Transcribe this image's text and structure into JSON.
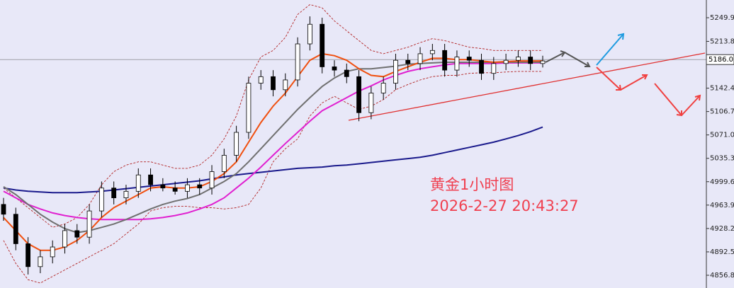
{
  "chart_data": {
    "type": "candlestick",
    "annotations": [
      "黄金1小时图",
      "2026-2-27 20:43:27"
    ],
    "price": 5186.05,
    "open": [
      4965,
      4950,
      4905,
      4870,
      4885,
      4900,
      4925,
      4915,
      4955,
      4990,
      4975,
      4985,
      5010,
      4995,
      4990,
      4985,
      4995,
      4990,
      5015,
      5040,
      5075,
      5150,
      5160,
      5140,
      5155,
      5210,
      5240,
      5175,
      5170,
      5160,
      5105,
      5135,
      5150,
      5185,
      5180,
      5195,
      5200,
      5170,
      5190,
      5185,
      5165,
      5180,
      5185,
      5190,
      5180
    ],
    "high": [
      4975,
      4960,
      4915,
      4895,
      4910,
      4935,
      4935,
      4965,
      5000,
      5000,
      4995,
      5020,
      5020,
      5005,
      5000,
      5005,
      5005,
      5025,
      5050,
      5085,
      5160,
      5170,
      5170,
      5165,
      5220,
      5252,
      5250,
      5185,
      5180,
      5170,
      5145,
      5160,
      5195,
      5195,
      5205,
      5210,
      5210,
      5200,
      5200,
      5195,
      5190,
      5195,
      5200,
      5200,
      5192
    ],
    "low": [
      4940,
      4895,
      4858,
      4860,
      4875,
      4890,
      4905,
      4905,
      4945,
      4965,
      4965,
      4975,
      4985,
      4985,
      4980,
      4975,
      4980,
      4980,
      5005,
      5030,
      5065,
      5140,
      5130,
      5130,
      5145,
      5200,
      5165,
      5160,
      5150,
      5092,
      5095,
      5125,
      5140,
      5170,
      5170,
      5185,
      5160,
      5160,
      5175,
      5155,
      5155,
      5170,
      5175,
      5170,
      5174
    ],
    "close": [
      4950,
      4905,
      4870,
      4885,
      4900,
      4925,
      4915,
      4955,
      4990,
      4975,
      4985,
      5010,
      4995,
      4990,
      4985,
      4995,
      4990,
      5015,
      5040,
      5075,
      5150,
      5160,
      5140,
      5155,
      5210,
      5240,
      5175,
      5170,
      5160,
      5105,
      5135,
      5150,
      5185,
      5180,
      5195,
      5200,
      5170,
      5190,
      5185,
      5165,
      5180,
      5185,
      5190,
      5180,
      5184
    ],
    "series": [
      {
        "color": "#b22222",
        "dash": true,
        "values": [
          4990,
          4975,
          4960,
          4945,
          4930,
          4935,
          4945,
          4965,
          4995,
          5015,
          5025,
          5030,
          5030,
          5025,
          5020,
          5020,
          5025,
          5040,
          5065,
          5100,
          5155,
          5190,
          5200,
          5220,
          5255,
          5270,
          5265,
          5245,
          5230,
          5215,
          5200,
          5195,
          5200,
          5205,
          5212,
          5218,
          5215,
          5210,
          5205,
          5203,
          5200,
          5200,
          5200,
          5200,
          5200
        ]
      },
      {
        "color": "#b22222",
        "dash": true,
        "values": [
          4910,
          4875,
          4850,
          4845,
          4855,
          4865,
          4875,
          4885,
          4895,
          4905,
          4920,
          4935,
          4955,
          4960,
          4962,
          4962,
          4960,
          4960,
          4958,
          4960,
          4965,
          4990,
          5030,
          5050,
          5065,
          5100,
          5120,
          5130,
          5120,
          5110,
          5115,
          5125,
          5140,
          5148,
          5155,
          5160,
          5162,
          5162,
          5165,
          5166,
          5166,
          5167,
          5168,
          5168,
          5168
        ]
      },
      {
        "color": "#1a1a8c",
        "dash": false,
        "values": [
          4990,
          4987,
          4985,
          4984,
          4983,
          4983,
          4983,
          4984,
          4985,
          4987,
          4989,
          4991,
          4993,
          4995,
          4997,
          4999,
          5001,
          5004,
          5007,
          5010,
          5012,
          5014,
          5016,
          5018,
          5020,
          5021,
          5022,
          5024,
          5025,
          5027,
          5029,
          5031,
          5033,
          5035,
          5037,
          5040,
          5044,
          5048,
          5052,
          5056,
          5060,
          5065,
          5070,
          5076,
          5083
        ]
      },
      {
        "color": "#e020d0",
        "dash": false,
        "values": [
          4985,
          4975,
          4965,
          4958,
          4952,
          4948,
          4945,
          4943,
          4942,
          4942,
          4942,
          4942,
          4943,
          4945,
          4948,
          4952,
          4958,
          4965,
          4975,
          4990,
          5005,
          5022,
          5040,
          5058,
          5075,
          5092,
          5108,
          5118,
          5128,
          5138,
          5146,
          5155,
          5162,
          5168,
          5172,
          5175,
          5178,
          5180,
          5180,
          5180,
          5180,
          5181,
          5181,
          5181,
          5181
        ]
      },
      {
        "color": "#707070",
        "dash": false,
        "values": [
          4992,
          4980,
          4965,
          4950,
          4938,
          4928,
          4922,
          4925,
          4930,
          4935,
          4942,
          4950,
          4958,
          4965,
          4970,
          4974,
          4980,
          4990,
          5000,
          5012,
          5030,
          5050,
          5070,
          5090,
          5110,
          5128,
          5145,
          5158,
          5168,
          5172,
          5172,
          5174,
          5176,
          5179,
          5180,
          5181,
          5182,
          5182,
          5182,
          5182,
          5182,
          5182,
          5182,
          5182,
          5182
        ]
      },
      {
        "color": "#f05010",
        "dash": false,
        "values": [
          4945,
          4925,
          4905,
          4895,
          4895,
          4900,
          4910,
          4925,
          4945,
          4960,
          4970,
          4980,
          4990,
          4992,
          4990,
          4990,
          4992,
          5000,
          5012,
          5030,
          5060,
          5090,
          5115,
          5135,
          5160,
          5185,
          5195,
          5192,
          5185,
          5172,
          5162,
          5160,
          5168,
          5175,
          5182,
          5188,
          5188,
          5186,
          5186,
          5184,
          5182,
          5183,
          5184,
          5184,
          5184
        ]
      }
    ],
    "ylim": [
      4837.4,
      5277.0
    ],
    "yticks": [
      5249.95,
      5213.85,
      5142.45,
      5106.75,
      5071.05,
      5035.35,
      4999.65,
      4963.95,
      4928.25,
      4892.55,
      4856.85
    ]
  }
}
